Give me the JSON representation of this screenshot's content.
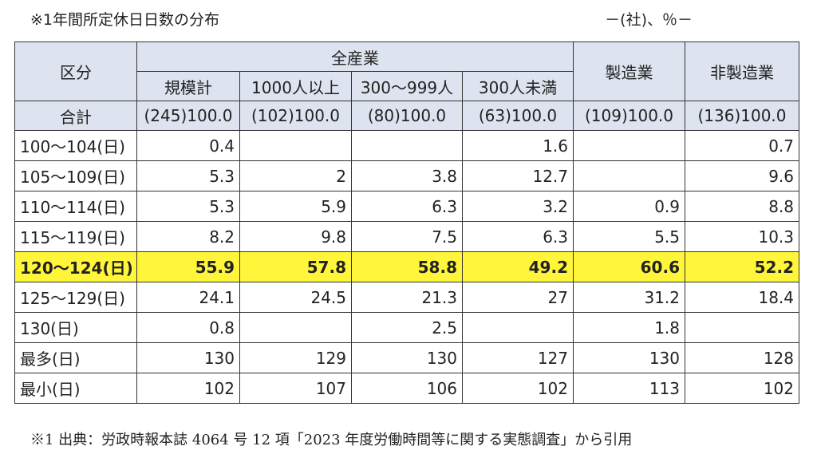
{
  "header": {
    "title": "※1年間所定休日日数の分布",
    "unit": "－(社)、％－"
  },
  "table": {
    "corner_label": "区分",
    "group_label": "全産業",
    "sub_columns": [
      "規模計",
      "1000人以上",
      "300～999人",
      "300人未満"
    ],
    "manufacturing_label": "製造業",
    "non_manufacturing_label": "非製造業",
    "total_row": {
      "label": "合計",
      "values": [
        "(245)100.0",
        "(102)100.0",
        "(80)100.0",
        "(63)100.0",
        "(109)100.0",
        "(136)100.0"
      ]
    },
    "rows": [
      {
        "label": "100～104(日)",
        "values": [
          "0.4",
          "",
          "",
          "1.6",
          "",
          "0.7"
        ],
        "highlight": false
      },
      {
        "label": "105～109(日)",
        "values": [
          "5.3",
          "2",
          "3.8",
          "12.7",
          "",
          "9.6"
        ],
        "highlight": false
      },
      {
        "label": "110～114(日)",
        "values": [
          "5.3",
          "5.9",
          "6.3",
          "3.2",
          "0.9",
          "8.8"
        ],
        "highlight": false
      },
      {
        "label": "115～119(日)",
        "values": [
          "8.2",
          "9.8",
          "7.5",
          "6.3",
          "5.5",
          "10.3"
        ],
        "highlight": false
      },
      {
        "label": "120～124(日)",
        "values": [
          "55.9",
          "57.8",
          "58.8",
          "49.2",
          "60.6",
          "52.2"
        ],
        "highlight": true
      },
      {
        "label": "125～129(日)",
        "values": [
          "24.1",
          "24.5",
          "21.3",
          "27",
          "31.2",
          "18.4"
        ],
        "highlight": false
      },
      {
        "label": "130(日)",
        "values": [
          "0.8",
          "",
          "2.5",
          "",
          "1.8",
          ""
        ],
        "highlight": false
      },
      {
        "label": "最多(日)",
        "values": [
          "130",
          "129",
          "130",
          "127",
          "130",
          "128"
        ],
        "highlight": false
      },
      {
        "label": "最小(日)",
        "values": [
          "102",
          "107",
          "106",
          "102",
          "113",
          "102"
        ],
        "highlight": false
      }
    ],
    "highlight_color": "#fff53b",
    "header_color": "#dde3ef"
  },
  "footnote": "※1 出典：労政時報本誌 4064 号 12 項「2023 年度労働時間等に関する実態調査」から引用"
}
